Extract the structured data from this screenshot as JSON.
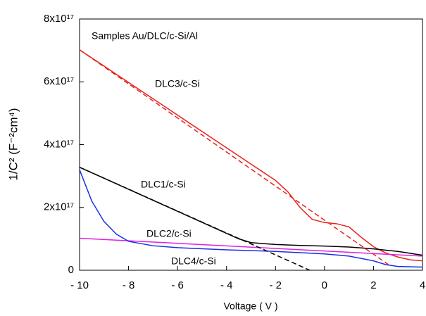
{
  "chart_data": {
    "type": "line",
    "annotation": "Samples Au/DLC/c-Si/Al",
    "x_label": "Voltage ( V )",
    "y_label": "1/C² (F⁻²cm⁴)",
    "xlim": [
      -10,
      4
    ],
    "ylim": [
      0,
      8e+17
    ],
    "xticks": [
      {
        "value": -10,
        "label": "- 10"
      },
      {
        "value": -8,
        "label": "- 8"
      },
      {
        "value": -6,
        "label": "- 6"
      },
      {
        "value": -4,
        "label": "- 4"
      },
      {
        "value": -2,
        "label": "- 2"
      },
      0,
      2,
      4
    ],
    "yticks": [
      0,
      {
        "value": 2e+17,
        "label": "2x10¹⁷"
      },
      {
        "value": 4e+17,
        "label": "4x10¹⁷"
      },
      {
        "value": 6e+17,
        "label": "6x10¹⁷"
      },
      {
        "value": 8e+17,
        "label": "8x10¹⁷"
      }
    ],
    "series": [
      {
        "name": "DLC3/c-Si",
        "color": "#e8231f",
        "x": [
          -10,
          -8,
          -6,
          -4,
          -2,
          -1.5,
          -1,
          -0.5,
          0,
          0.5,
          1,
          1.5,
          2,
          2.5,
          3,
          3.5,
          4
        ],
        "values": [
          7.02e+17,
          5.98e+17,
          4.94e+17,
          3.9e+17,
          2.86e+17,
          2.5e+17,
          2e+17,
          1.62e+17,
          1.52e+17,
          1.48e+17,
          1.38e+17,
          1.05e+17,
          7.5e+16,
          5.5e+16,
          4.2e+16,
          3.3e+16,
          3e+16
        ]
      },
      {
        "name": "DLC1/c-Si",
        "color": "#000000",
        "x": [
          -10,
          -3.5,
          -3,
          -2,
          -1,
          0,
          1,
          2,
          3,
          4
        ],
        "values": [
          3.28e+17,
          1e+17,
          8.8e+16,
          8.2e+16,
          7.9e+16,
          7.7e+16,
          7.4e+16,
          6.8e+16,
          6e+16,
          4.8e+16
        ]
      },
      {
        "name": "DLC2/c-Si",
        "color": "#e020e0",
        "x": [
          -10,
          4
        ],
        "values": [
          1.02e+17,
          4.5e+16
        ]
      },
      {
        "name": "DLC4/c-Si",
        "color": "#1a2ee8",
        "x": [
          -10,
          -9.5,
          -9,
          -8.5,
          -8,
          -7,
          -6,
          -4,
          -2,
          0,
          1,
          2,
          2.5,
          3,
          4
        ],
        "values": [
          3.2e+17,
          2.2e+17,
          1.55e+17,
          1.15e+17,
          9.2e+16,
          7.8e+16,
          7.2e+16,
          6.5e+16,
          6e+16,
          5.2e+16,
          4.5e+16,
          3e+16,
          1.8e+16,
          1.2e+16,
          1e+16
        ]
      }
    ],
    "fit_lines": [
      {
        "color": "#e8231f",
        "x": [
          -10,
          2.7
        ],
        "values": [
          7.02e+17,
          1.3e+16
        ]
      },
      {
        "color": "#000000",
        "x": [
          -10,
          -0.6
        ],
        "values": [
          3.28e+17,
          0
        ]
      }
    ]
  }
}
